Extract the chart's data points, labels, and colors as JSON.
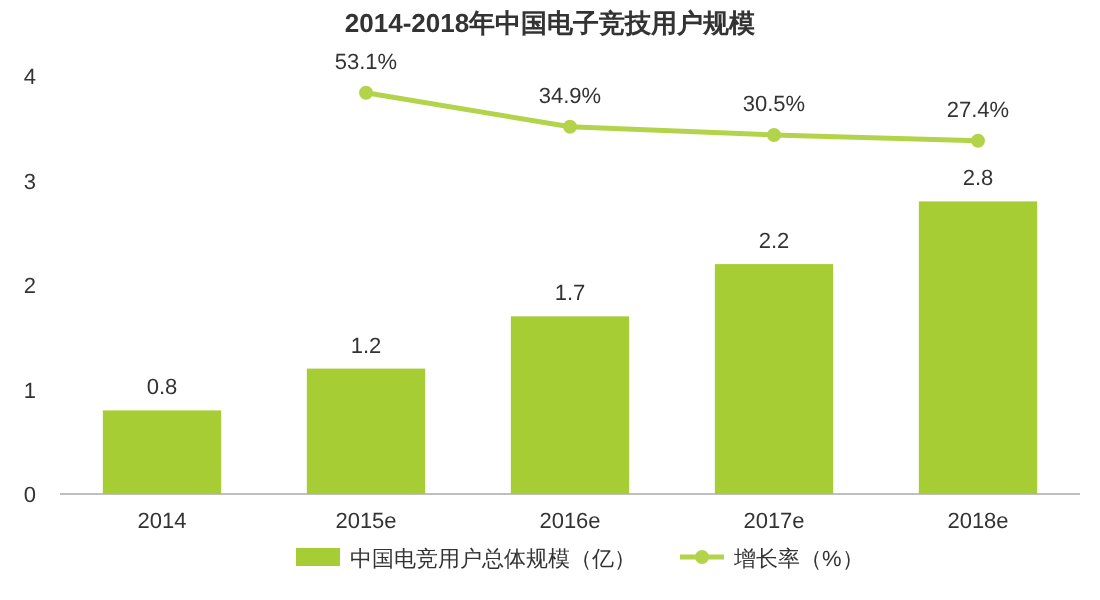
{
  "chart_data": {
    "type": "bar",
    "title": "2014-2018年中国电子竞技用户规模",
    "categories": [
      "2014",
      "2015e",
      "2016e",
      "2017e",
      "2018e"
    ],
    "series": [
      {
        "name": "中国电竞用户总体规模（亿）",
        "color": "#a6cd33",
        "values": [
          0.8,
          1.2,
          1.7,
          2.2,
          2.8
        ],
        "value_labels": [
          "0.8",
          "1.2",
          "1.7",
          "2.2",
          "2.8"
        ]
      },
      {
        "name": "增长率（%）",
        "type": "line",
        "axis": "y2",
        "color": "#b3d44a",
        "values": [
          null,
          53.1,
          34.9,
          30.5,
          27.4
        ],
        "value_labels": [
          null,
          "53.1%",
          "34.9%",
          "30.5%",
          "27.4%"
        ]
      }
    ],
    "ylim": [
      0,
      4
    ],
    "yticks": [
      0,
      1,
      2,
      3,
      4
    ],
    "legend": "bottom",
    "marker": "circle",
    "grid": false
  }
}
